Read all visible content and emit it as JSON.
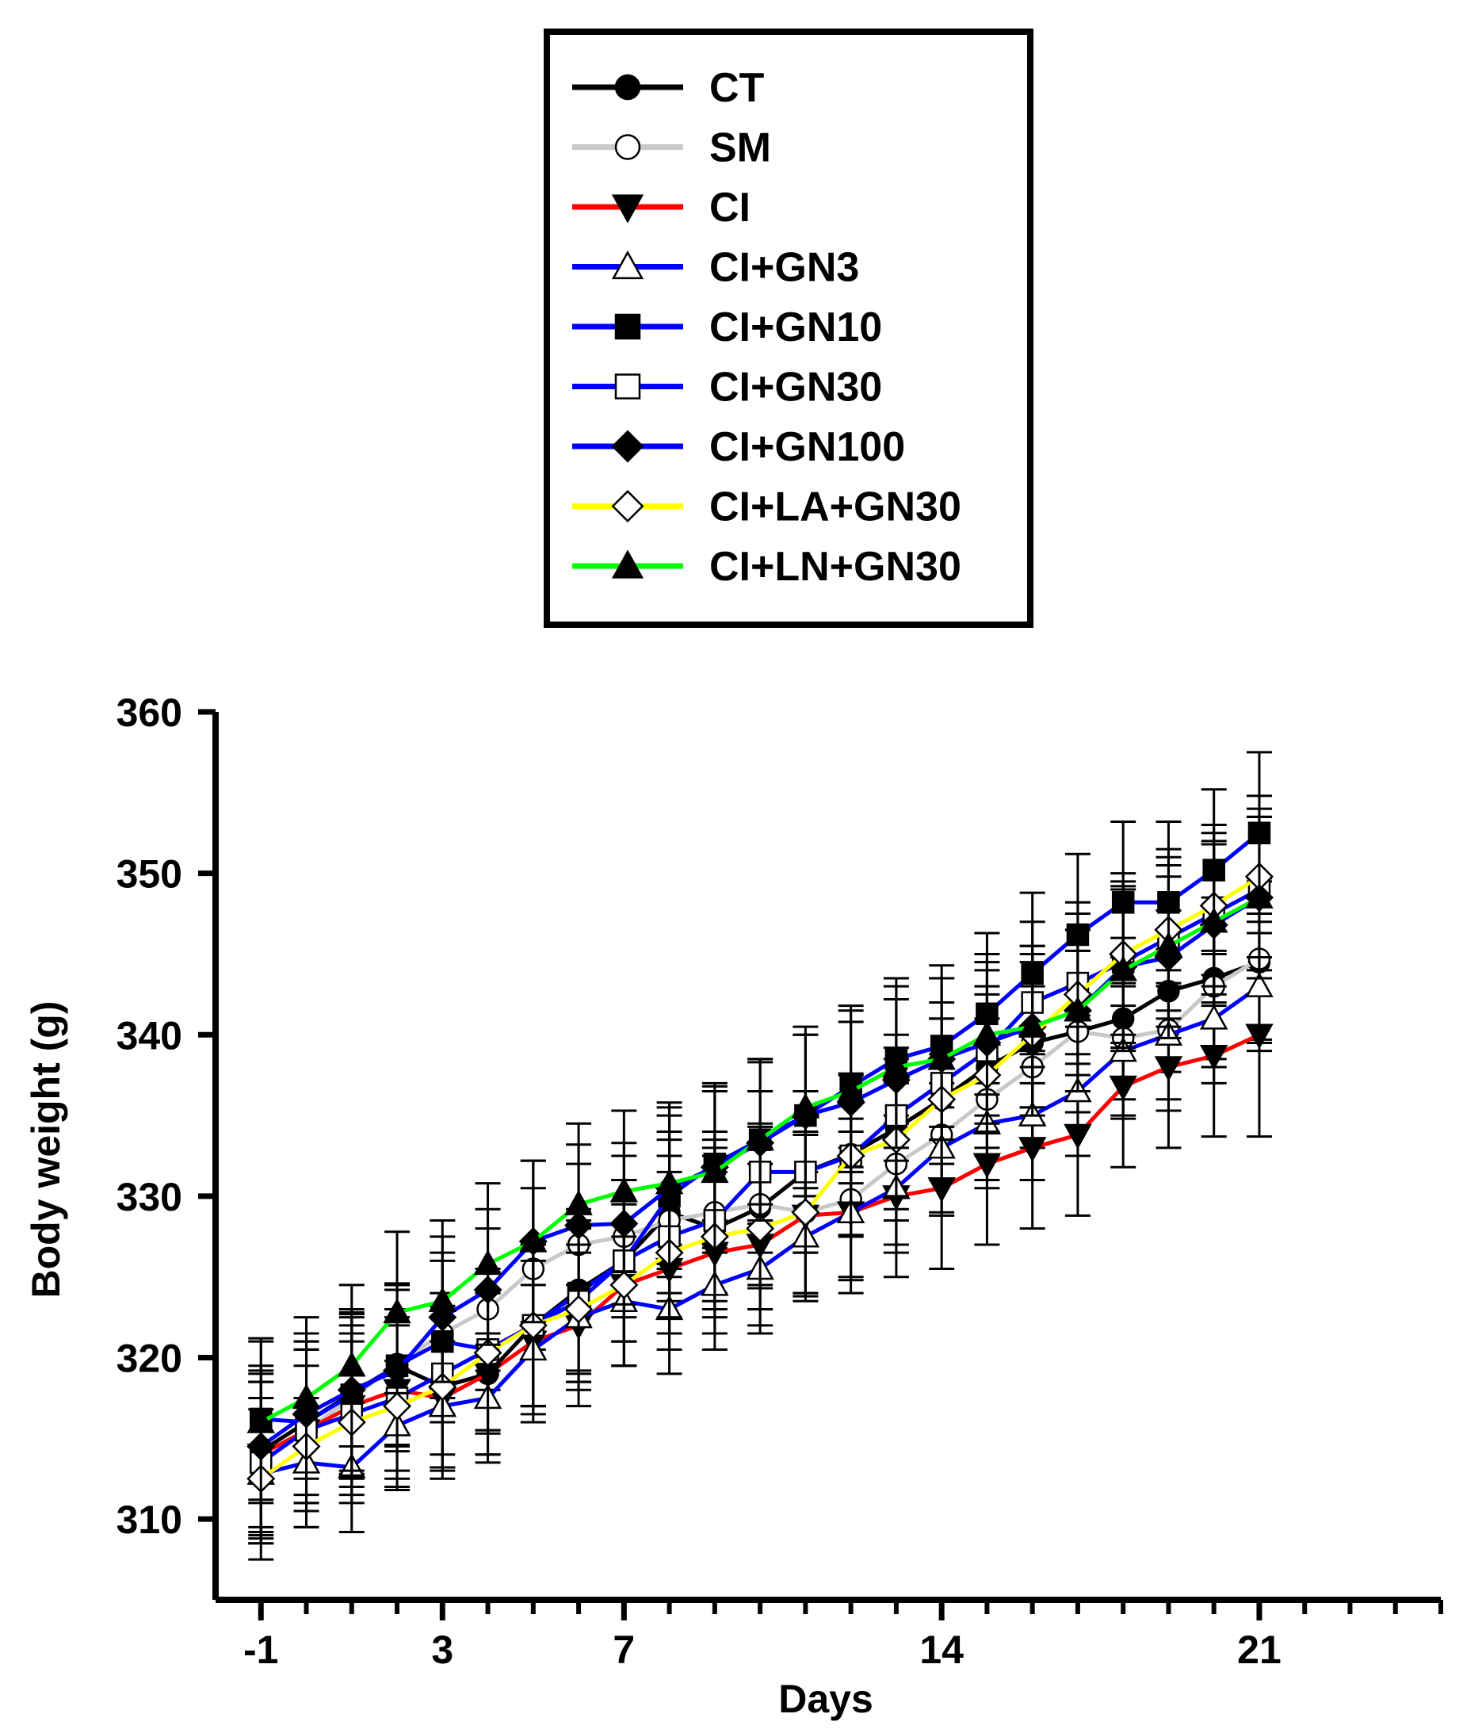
{
  "chart_data": {
    "type": "line",
    "title": "",
    "xlabel": "Days",
    "ylabel": "Body weight (g)",
    "xlim": [
      -2,
      25
    ],
    "ylim": [
      305,
      360
    ],
    "x_ticks": [
      -1,
      3,
      7,
      14,
      21
    ],
    "y_ticks": [
      310,
      320,
      330,
      340,
      350,
      360
    ],
    "minor_x_ticks": [
      -1,
      0,
      1,
      2,
      3,
      4,
      5,
      6,
      7,
      8,
      9,
      10,
      11,
      12,
      13,
      14,
      15,
      16,
      17,
      18,
      19,
      20,
      21,
      22,
      23,
      24,
      25
    ],
    "grid": false,
    "legend_position": "top-center",
    "error_bars": true,
    "x": [
      -1,
      0,
      1,
      2,
      3,
      4,
      5,
      6,
      7,
      8,
      9,
      10,
      11,
      12,
      13,
      14,
      15,
      16,
      17,
      18,
      19,
      20,
      21
    ],
    "series": [
      {
        "name": "CT",
        "color": "#000000",
        "marker": "circle-filled",
        "values": [
          314.2,
          316.0,
          317.8,
          319.5,
          318.2,
          319.0,
          322.0,
          324.2,
          326.0,
          329.0,
          328.0,
          329.3,
          331.5,
          332.6,
          334.2,
          336.0,
          338.0,
          339.5,
          340.2,
          341.0,
          342.7,
          343.5,
          344.5
        ],
        "errors": [
          5,
          5,
          5,
          5,
          5,
          5,
          5,
          5,
          5,
          5,
          5,
          5,
          5,
          5,
          5,
          5,
          5,
          5,
          5,
          5,
          5,
          5,
          5
        ]
      },
      {
        "name": "SM",
        "color": "#c8c8c8",
        "marker": "circle-open",
        "values": [
          313.5,
          315.5,
          317.5,
          319.6,
          321.5,
          323.0,
          325.5,
          327.0,
          327.5,
          328.5,
          329.0,
          329.5,
          329.0,
          329.8,
          332.0,
          333.8,
          336.0,
          338.0,
          340.2,
          339.8,
          340.3,
          343.0,
          344.7
        ],
        "errors": [
          5,
          5,
          5,
          5,
          5,
          5,
          5,
          5,
          5,
          5,
          5,
          5,
          5,
          5,
          5,
          5,
          5,
          5,
          5,
          5,
          5,
          5,
          5
        ]
      },
      {
        "name": "CI",
        "color": "#ff0000",
        "marker": "triangle-down-filled",
        "values": [
          314.0,
          315.5,
          317.0,
          318.0,
          317.5,
          319.0,
          321.0,
          322.0,
          324.5,
          325.5,
          326.5,
          327.0,
          328.8,
          329.0,
          330.0,
          330.5,
          332.0,
          333.0,
          333.8,
          336.8,
          338.0,
          338.7,
          340.0
        ],
        "errors": [
          5,
          5,
          5,
          5,
          5,
          5,
          5,
          5,
          5,
          5,
          5,
          5,
          5,
          5,
          5,
          5,
          5,
          5,
          5,
          5,
          5,
          5,
          6.3
        ]
      },
      {
        "name": "CI+GN3",
        "color": "#0000ff",
        "marker": "triangle-up-open",
        "values": [
          312.8,
          313.5,
          313.2,
          315.8,
          317.0,
          317.5,
          320.5,
          322.5,
          323.5,
          323.0,
          324.5,
          325.5,
          327.5,
          329.0,
          330.5,
          333.0,
          334.5,
          335.0,
          336.5,
          339.0,
          340.0,
          341.0,
          343.0
        ],
        "errors": [
          4,
          4,
          4,
          4,
          4,
          4,
          4,
          4,
          4,
          4,
          4,
          4,
          4,
          4,
          4,
          4,
          4,
          4,
          4,
          4,
          4,
          4,
          4
        ]
      },
      {
        "name": "CI+GN10",
        "color": "#0000ff",
        "marker": "square-filled",
        "values": [
          316.2,
          316.0,
          317.7,
          319.5,
          321.0,
          320.5,
          322.0,
          324.0,
          326.0,
          330.0,
          332.0,
          333.5,
          335.0,
          336.8,
          338.5,
          339.3,
          341.3,
          343.8,
          346.2,
          348.2,
          348.2,
          350.2,
          352.5
        ],
        "errors": [
          5,
          5,
          5,
          5,
          5,
          5,
          5,
          5,
          5,
          5,
          5,
          5,
          5,
          5,
          5,
          5,
          5,
          5,
          5,
          5,
          5,
          5,
          5
        ]
      },
      {
        "name": "CI+GN30",
        "color": "#0000ff",
        "marker": "square-open",
        "values": [
          313.5,
          315.5,
          316.5,
          317.5,
          319.0,
          320.5,
          322.0,
          323.5,
          326.0,
          327.5,
          328.5,
          331.5,
          331.5,
          332.5,
          335.0,
          337.0,
          339.0,
          342.0,
          343.2,
          344.5,
          346.0,
          347.5,
          349.0
        ],
        "errors": [
          5,
          5,
          5,
          5,
          5,
          5,
          5,
          5,
          5,
          5,
          5,
          5,
          5,
          5,
          5,
          5,
          5,
          5,
          5,
          5,
          5,
          5,
          5
        ]
      },
      {
        "name": "CI+GN100",
        "color": "#0000ff",
        "marker": "diamond-filled",
        "values": [
          314.5,
          316.5,
          318.0,
          319.2,
          322.5,
          324.2,
          327.2,
          328.2,
          328.3,
          330.5,
          331.8,
          333.3,
          335.0,
          335.8,
          337.2,
          338.5,
          339.5,
          340.5,
          341.5,
          344.2,
          344.8,
          346.8,
          348.5
        ],
        "errors": [
          5,
          5,
          5,
          5,
          5,
          5,
          5,
          5,
          5,
          5,
          5,
          5,
          5,
          5,
          5,
          5,
          5,
          5,
          5,
          5,
          5,
          5,
          5
        ]
      },
      {
        "name": "CI+LA+GN30",
        "color": "#ffff00",
        "marker": "diamond-open",
        "values": [
          312.5,
          314.5,
          316.0,
          317.0,
          318.2,
          320.3,
          322.0,
          323.0,
          324.5,
          326.5,
          327.5,
          328.0,
          329.0,
          332.5,
          333.5,
          336.0,
          337.5,
          340.0,
          342.5,
          345.0,
          346.5,
          348.0,
          349.8
        ],
        "errors": [
          5,
          5,
          5,
          5,
          5,
          5,
          5,
          5,
          5,
          5,
          5,
          5,
          5,
          5,
          5,
          5,
          5,
          5,
          5,
          5,
          5,
          5,
          5
        ]
      },
      {
        "name": "CI+LN+GN30",
        "color": "#00ff00",
        "marker": "triangle-up-filled",
        "values": [
          316.0,
          317.5,
          319.5,
          322.8,
          323.5,
          325.8,
          327.2,
          329.5,
          330.3,
          330.8,
          331.5,
          333.5,
          335.5,
          336.5,
          338.0,
          338.5,
          340.0,
          340.5,
          341.5,
          344.0,
          345.5,
          347.0,
          348.5
        ],
        "errors": [
          5,
          5,
          5,
          5,
          5,
          5,
          5,
          5,
          5,
          5,
          5,
          5,
          5,
          5,
          5,
          5,
          5,
          5,
          5,
          5,
          5,
          5,
          5
        ]
      }
    ]
  }
}
